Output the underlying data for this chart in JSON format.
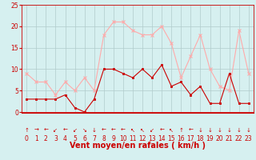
{
  "hours": [
    0,
    1,
    2,
    3,
    4,
    5,
    6,
    7,
    8,
    9,
    10,
    11,
    12,
    13,
    14,
    15,
    16,
    17,
    18,
    19,
    20,
    21,
    22,
    23
  ],
  "vent_moyen": [
    3,
    3,
    3,
    3,
    4,
    1,
    0,
    3,
    10,
    10,
    9,
    8,
    10,
    8,
    11,
    6,
    7,
    4,
    6,
    2,
    2,
    9,
    2,
    2
  ],
  "rafales": [
    9,
    7,
    7,
    4,
    7,
    5,
    8,
    5,
    18,
    21,
    21,
    19,
    18,
    18,
    20,
    16,
    8,
    13,
    18,
    10,
    6,
    5,
    19,
    9
  ],
  "wind_arrows": [
    "↑",
    "→",
    "←",
    "↙",
    "←",
    "↙",
    "↘",
    "↓",
    "←",
    "←",
    "←",
    "↖",
    "↖",
    "↙",
    "←",
    "↖",
    "↑",
    "←",
    "↓",
    "↓",
    "↓",
    "↓",
    "↓",
    "↓"
  ],
  "xlabel": "Vent moyen/en rafales ( km/h )",
  "ylim": [
    0,
    25
  ],
  "xlim": [
    -0.5,
    23.5
  ],
  "yticks": [
    0,
    5,
    10,
    15,
    20,
    25
  ],
  "xticks": [
    0,
    1,
    2,
    3,
    4,
    5,
    6,
    7,
    8,
    9,
    10,
    11,
    12,
    13,
    14,
    15,
    16,
    17,
    18,
    19,
    20,
    21,
    22,
    23
  ],
  "color_moyen": "#cc0000",
  "color_rafales": "#ffaaaa",
  "bg_color": "#d6f0f0",
  "grid_color": "#b0cccc",
  "text_color": "#cc0000",
  "spine_color": "#cc0000",
  "tick_fontsize": 5.5,
  "label_fontsize": 7,
  "arrow_fontsize": 5
}
